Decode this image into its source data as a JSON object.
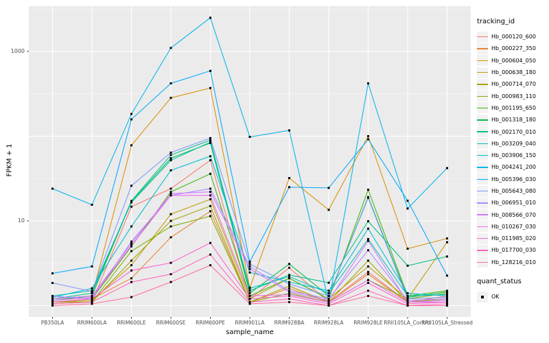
{
  "figure": {
    "background": "#FFFFFF",
    "panel_background": "#EBEBEB",
    "grid_color": "#FFFFFF",
    "point_color": "#000000",
    "axis_text_color": "#4D4D4D"
  },
  "legend": {
    "tracking_title": "tracking_id",
    "quant_title": "quant_status",
    "quant_items": [
      {
        "label": "OK"
      }
    ]
  },
  "chart_data": {
    "type": "line",
    "title": "",
    "xlabel": "sample_name",
    "ylabel": "FPKM + 1",
    "y_scale": "log10",
    "ylim": [
      0.73,
      3400
    ],
    "grid": "on",
    "legend_position": "right",
    "y_ticks": [
      {
        "label": "1000",
        "value": 1000
      },
      {
        "label": "10",
        "value": 10
      }
    ],
    "y_major_gridlines": [
      1,
      10,
      100,
      1000
    ],
    "y_minor_gridlines": [
      3.162,
      31.62,
      316.2,
      3162
    ],
    "categories": [
      "PB350LA",
      "RRIM600LA",
      "RRIM600LE",
      "RRIM600SE",
      "RRIM600PE",
      "RRIM901LA",
      "RRIM928BA",
      "RRIM928LA",
      "RRIM928LE",
      "RRII105LA_Control",
      "RRII105LA_Stressed"
    ],
    "series": [
      {
        "name": "Hb_000120_600",
        "color": "#F8766D",
        "values": [
          1.1,
          1.1,
          14.7,
          24,
          52,
          1.2,
          2.8,
          1.1,
          2.5,
          1.1,
          1.3
        ]
      },
      {
        "name": "Hb_000227_350",
        "color": "#EA8331",
        "values": [
          1.1,
          1.2,
          2.1,
          6.4,
          13,
          1.1,
          1.6,
          1.1,
          2.35,
          1.1,
          1.2
        ]
      },
      {
        "name": "Hb_000604_050",
        "color": "#D89000",
        "values": [
          1.2,
          1.3,
          78,
          283,
          370,
          1.63,
          32,
          13.5,
          100,
          4.7,
          6.2
        ]
      },
      {
        "name": "Hb_000638_180",
        "color": "#C09B00",
        "values": [
          1.1,
          1.15,
          3.0,
          12,
          18,
          1.2,
          2.1,
          1.2,
          2.9,
          1.2,
          5.6
        ]
      },
      {
        "name": "Hb_000714_070",
        "color": "#A3A500",
        "values": [
          1.1,
          1.1,
          3.4,
          10,
          15,
          1.1,
          1.7,
          1.1,
          3.4,
          1.1,
          1.2
        ]
      },
      {
        "name": "Hb_000983_110",
        "color": "#7CAE00",
        "values": [
          1.05,
          1.1,
          4.4,
          8.6,
          11.4,
          1.1,
          1.4,
          1.1,
          2.0,
          1.2,
          1.4
        ]
      },
      {
        "name": "Hb_001195_650",
        "color": "#39B600",
        "values": [
          1.1,
          1.2,
          5.0,
          22,
          36,
          1.3,
          2.1,
          1.2,
          23.3,
          1.3,
          1.5
        ]
      },
      {
        "name": "Hb_001318_180",
        "color": "#00BB4E",
        "values": [
          1.15,
          1.3,
          17.0,
          55,
          83,
          1.4,
          3.1,
          1.3,
          19.1,
          1.25,
          1.45
        ]
      },
      {
        "name": "Hb_002170_010",
        "color": "#00C087",
        "values": [
          1.2,
          1.4,
          17.2,
          60,
          90,
          1.5,
          2.3,
          1.86,
          9.9,
          2.96,
          3.8
        ]
      },
      {
        "name": "Hb_003209_040",
        "color": "#00C0B2",
        "values": [
          1.3,
          1.5,
          16.5,
          52,
          85,
          1.6,
          2.2,
          1.4,
          6.1,
          1.3,
          1.35
        ]
      },
      {
        "name": "Hb_003906_150",
        "color": "#00BDD2",
        "values": [
          1.25,
          1.6,
          8.6,
          39.5,
          58,
          2.46,
          1.9,
          1.5,
          8.1,
          1.4,
          1.3
        ]
      },
      {
        "name": "Hb_004241_200",
        "color": "#00B5EE",
        "values": [
          24,
          15.5,
          183,
          1100,
          2500,
          98,
          117,
          1.1,
          420,
          14,
          42
        ]
      },
      {
        "name": "Hb_005396_030",
        "color": "#00A6FF",
        "values": [
          2.4,
          2.9,
          158,
          420,
          590,
          3.3,
          25,
          24.5,
          92,
          17.3,
          2.26
        ]
      },
      {
        "name": "Hb_005643_080",
        "color": "#7C96FF",
        "values": [
          1.85,
          1.47,
          26,
          64,
          95,
          3.1,
          1.8,
          1.3,
          18.7,
          1.2,
          1.25
        ]
      },
      {
        "name": "Hb_006951_010",
        "color": "#AC88FF",
        "values": [
          1.29,
          1.2,
          5.7,
          20,
          24,
          2.9,
          1.5,
          1.2,
          4.5,
          1.15,
          1.2
        ]
      },
      {
        "name": "Hb_008566_070",
        "color": "#D277FF",
        "values": [
          1.2,
          1.3,
          5.4,
          21,
          22,
          2.7,
          1.45,
          1.15,
          5.8,
          1.1,
          1.15
        ]
      },
      {
        "name": "Hb_010267_030",
        "color": "#EF67EB",
        "values": [
          1.15,
          1.25,
          5.1,
          20,
          20,
          1.3,
          1.35,
          1.1,
          2.0,
          1.1,
          1.1
        ]
      },
      {
        "name": "Hb_011985_020",
        "color": "#FD61D1",
        "values": [
          1.1,
          1.2,
          2.6,
          3.2,
          5.5,
          1.2,
          1.3,
          1.05,
          1.85,
          1.05,
          1.1
        ]
      },
      {
        "name": "Hb_017700_030",
        "color": "#FF62BC",
        "values": [
          1.05,
          1.1,
          1.9,
          2.35,
          4.0,
          1.1,
          1.2,
          1.0,
          1.5,
          1.0,
          1.05
        ]
      },
      {
        "name": "Hb_128216_010",
        "color": "#FF6A9A",
        "values": [
          1.0,
          1.05,
          1.26,
          1.9,
          3.0,
          1.05,
          1.1,
          1.0,
          1.3,
          1.0,
          1.0
        ]
      }
    ]
  }
}
